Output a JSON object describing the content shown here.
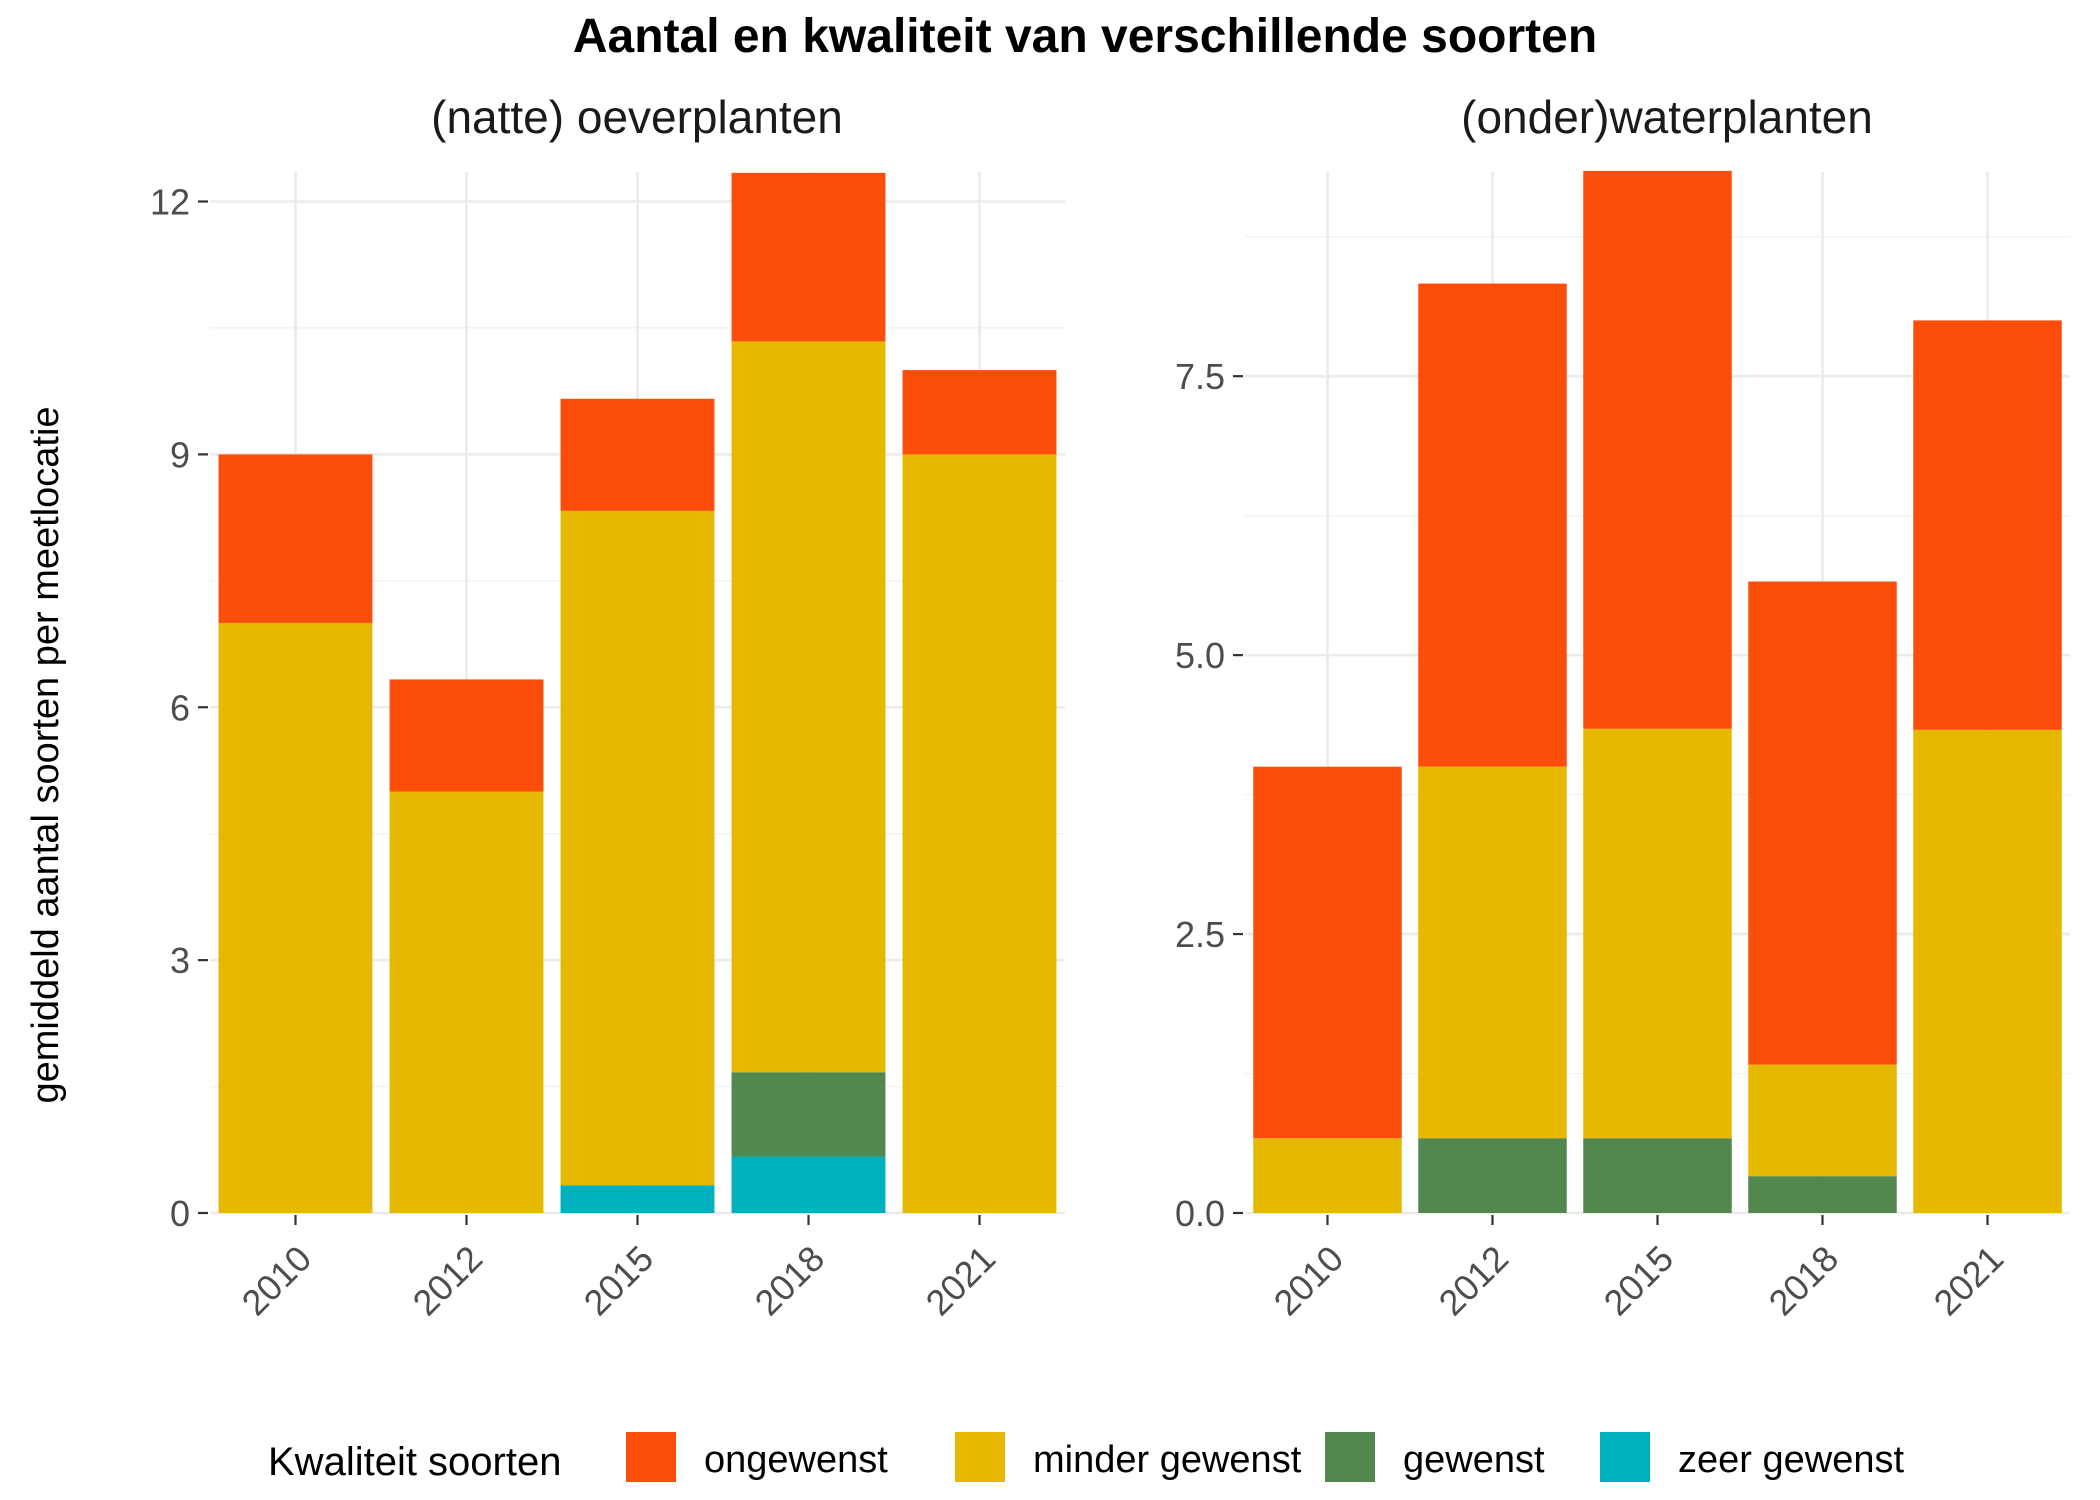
{
  "chart_data": {
    "type": "bar",
    "stacked": true,
    "title": "Aantal en kwaliteit van verschillende soorten",
    "ylabel": "gemiddeld aantal soorten per meetlocatie",
    "legend": {
      "title": "Kwaliteit soorten",
      "position": "bottom",
      "entries": [
        "ongewenst",
        "minder gewenst",
        "gewenst",
        "zeer gewenst"
      ]
    },
    "colors": {
      "ongewenst": "#fc4e0a",
      "minder gewenst": "#e6b800",
      "gewenst": "#52874d",
      "zeer gewenst": "#00b0be"
    },
    "grid": true,
    "panels": [
      {
        "title": "(natte) oeverplanten",
        "categories": [
          "2010",
          "2012",
          "2015",
          "2018",
          "2021"
        ],
        "ylim": [
          0,
          12.35
        ],
        "yticks": [
          0,
          3,
          6,
          9,
          12
        ],
        "ytick_labels": [
          "0",
          "3",
          "6",
          "9",
          "12"
        ],
        "series": [
          {
            "name": "zeer gewenst",
            "values": [
              0,
              0,
              0.33,
              0.67,
              0
            ]
          },
          {
            "name": "gewenst",
            "values": [
              0,
              0,
              0,
              1,
              0
            ]
          },
          {
            "name": "minder gewenst",
            "values": [
              7,
              5,
              8,
              8.67,
              9
            ]
          },
          {
            "name": "ongewenst",
            "values": [
              2,
              1.33,
              1.33,
              2,
              1
            ]
          }
        ]
      },
      {
        "title": "(onder)waterplanten",
        "categories": [
          "2010",
          "2012",
          "2015",
          "2018",
          "2021"
        ],
        "ylim": [
          0,
          9.33
        ],
        "yticks": [
          0,
          2.5,
          5,
          7.5
        ],
        "ytick_labels": [
          "0.0",
          "2.5",
          "5.0",
          "7.5"
        ],
        "series": [
          {
            "name": "zeer gewenst",
            "values": [
              0,
              0,
              0,
              0,
              0
            ]
          },
          {
            "name": "gewenst",
            "values": [
              0,
              0.67,
              0.67,
              0.33,
              0
            ]
          },
          {
            "name": "minder gewenst",
            "values": [
              0.67,
              3.33,
              3.67,
              1,
              4.33
            ]
          },
          {
            "name": "ongewenst",
            "values": [
              3.33,
              4.33,
              5,
              4.33,
              3.67
            ]
          }
        ]
      }
    ]
  }
}
